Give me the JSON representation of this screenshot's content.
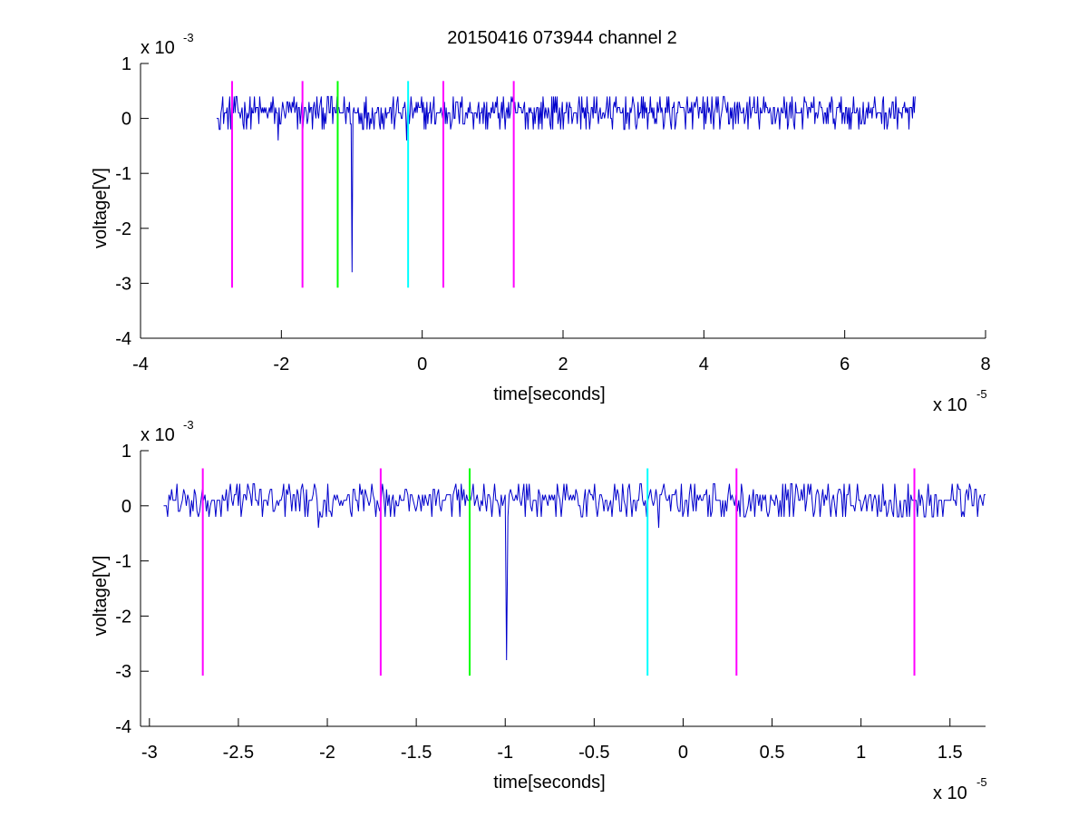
{
  "figure": {
    "title": "20150416 073944 channel 2"
  },
  "chart_data": [
    {
      "type": "line",
      "xlabel": "time[seconds]",
      "ylabel": "voltage[V]",
      "x_exponent": "x 10",
      "x_exponent_power": "-5",
      "y_exponent": "x 10",
      "y_exponent_power": "-3",
      "xlim": [
        -4,
        8
      ],
      "ylim": [
        -4,
        1
      ],
      "xticks": [
        -4,
        -2,
        0,
        2,
        4,
        6,
        8
      ],
      "xtick_labels": [
        "-4",
        "-2",
        "0",
        "2",
        "4",
        "6",
        "8"
      ],
      "yticks": [
        -4,
        -3,
        -2,
        -1,
        0,
        1
      ],
      "ytick_labels": [
        "-4",
        "-3",
        "-2",
        "-1",
        "0",
        "1"
      ],
      "grid": false,
      "series": [
        {
          "color": "#0000cc",
          "x_range": [
            -2.92,
            7.0
          ],
          "baseline": 0.1,
          "noise": [
            -0.2,
            0.4
          ],
          "spikes": [
            {
              "x": -1.0,
              "y": -2.8
            },
            {
              "x": -0.22,
              "y": -0.4
            },
            {
              "x": -2.05,
              "y": -0.4
            }
          ]
        }
      ],
      "markers": [
        {
          "x": -2.7,
          "y_top": 0.68,
          "y_bottom": -3.08,
          "color": "#ff00ff"
        },
        {
          "x": -1.7,
          "y_top": 0.68,
          "y_bottom": -3.08,
          "color": "#ff00ff"
        },
        {
          "x": -1.2,
          "y_top": 0.68,
          "y_bottom": -3.08,
          "color": "#00ff00"
        },
        {
          "x": -0.2,
          "y_top": 0.68,
          "y_bottom": -3.08,
          "color": "#00ffff"
        },
        {
          "x": 0.3,
          "y_top": 0.68,
          "y_bottom": -3.08,
          "color": "#ff00ff"
        },
        {
          "x": 1.3,
          "y_top": 0.68,
          "y_bottom": -3.08,
          "color": "#ff00ff"
        }
      ]
    },
    {
      "type": "line",
      "xlabel": "time[seconds]",
      "ylabel": "voltage[V]",
      "x_exponent": "x 10",
      "x_exponent_power": "-5",
      "y_exponent": "x 10",
      "y_exponent_power": "-3",
      "xlim": [
        -3.05,
        1.7
      ],
      "ylim": [
        -4,
        1
      ],
      "xticks": [
        -3,
        -2.5,
        -2,
        -1.5,
        -1,
        -0.5,
        0,
        0.5,
        1,
        1.5
      ],
      "xtick_labels": [
        "-3",
        "-2.5",
        "-2",
        "-1.5",
        "-1",
        "-0.5",
        "0",
        "0.5",
        "1",
        "1.5"
      ],
      "yticks": [
        -4,
        -3,
        -2,
        -1,
        0,
        1
      ],
      "ytick_labels": [
        "-4",
        "-3",
        "-2",
        "-1",
        "0",
        "1"
      ],
      "grid": false,
      "series": [
        {
          "color": "#0000cc",
          "x_range": [
            -2.92,
            1.7
          ],
          "baseline": 0.1,
          "noise": [
            -0.2,
            0.4
          ],
          "spikes": [
            {
              "x": -0.99,
              "y": -2.8
            },
            {
              "x": -0.14,
              "y": -0.4
            },
            {
              "x": -2.05,
              "y": -0.4
            }
          ]
        }
      ],
      "markers": [
        {
          "x": -2.7,
          "y_top": 0.68,
          "y_bottom": -3.08,
          "color": "#ff00ff"
        },
        {
          "x": -1.7,
          "y_top": 0.68,
          "y_bottom": -3.08,
          "color": "#ff00ff"
        },
        {
          "x": -1.2,
          "y_top": 0.68,
          "y_bottom": -3.08,
          "color": "#00ff00"
        },
        {
          "x": -0.2,
          "y_top": 0.68,
          "y_bottom": -3.08,
          "color": "#00ffff"
        },
        {
          "x": 0.3,
          "y_top": 0.68,
          "y_bottom": -3.08,
          "color": "#ff00ff"
        },
        {
          "x": 1.3,
          "y_top": 0.68,
          "y_bottom": -3.08,
          "color": "#ff00ff"
        }
      ]
    }
  ]
}
